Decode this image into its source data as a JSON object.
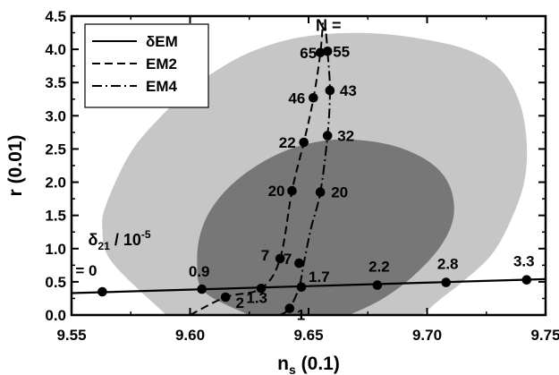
{
  "chart_data": {
    "type": "line",
    "title": "",
    "xlabel": "n",
    "xlabel_sub": "s",
    "xlabel_unit": "(0.1)",
    "ylabel": "r (0.01)",
    "xlim": [
      9.55,
      9.75
    ],
    "ylim": [
      0.0,
      4.5
    ],
    "xticks": [
      "9.55",
      "9.60",
      "9.65",
      "9.70",
      "9.75"
    ],
    "xtick_values": [
      9.55,
      9.6,
      9.65,
      9.7,
      9.75
    ],
    "yticks": [
      "0.0",
      "0.5",
      "1.0",
      "1.5",
      "2.0",
      "2.5",
      "3.0",
      "3.5",
      "4.0",
      "4.5"
    ],
    "ytick_values": [
      0.0,
      0.5,
      1.0,
      1.5,
      2.0,
      2.5,
      3.0,
      3.5,
      4.0,
      4.5
    ],
    "grid": false,
    "legend_position": "top-left",
    "contours": [
      {
        "level": "outer",
        "color": "#c6c6c6",
        "points": [
          [
            9.59,
            0.0
          ],
          [
            9.567,
            0.8
          ],
          [
            9.563,
            1.3
          ],
          [
            9.565,
            1.7
          ],
          [
            9.575,
            2.45
          ],
          [
            9.588,
            3.0
          ],
          [
            9.6,
            3.4
          ],
          [
            9.612,
            3.7
          ],
          [
            9.625,
            3.95
          ],
          [
            9.642,
            4.15
          ],
          [
            9.662,
            4.24
          ],
          [
            9.682,
            4.23
          ],
          [
            9.702,
            4.13
          ],
          [
            9.718,
            3.98
          ],
          [
            9.731,
            3.7
          ],
          [
            9.739,
            3.2
          ],
          [
            9.742,
            2.6
          ],
          [
            9.741,
            2.0
          ],
          [
            9.735,
            1.4
          ],
          [
            9.727,
            0.9
          ],
          [
            9.715,
            0.5
          ],
          [
            9.706,
            0.25
          ],
          [
            9.698,
            0.0
          ]
        ]
      },
      {
        "level": "inner",
        "color": "#777777",
        "points": [
          [
            9.625,
            0.0
          ],
          [
            9.606,
            0.35
          ],
          [
            9.603,
            0.8
          ],
          [
            9.605,
            1.3
          ],
          [
            9.612,
            1.75
          ],
          [
            9.624,
            2.15
          ],
          [
            9.64,
            2.47
          ],
          [
            9.658,
            2.63
          ],
          [
            9.675,
            2.62
          ],
          [
            9.69,
            2.5
          ],
          [
            9.703,
            2.25
          ],
          [
            9.71,
            1.9
          ],
          [
            9.711,
            1.45
          ],
          [
            9.705,
            1.0
          ],
          [
            9.693,
            0.55
          ],
          [
            9.68,
            0.22
          ],
          [
            9.667,
            0.0
          ]
        ]
      }
    ],
    "series": [
      {
        "name": "δEM",
        "style": "solid",
        "points": [
          [
            9.55,
            0.33
          ],
          [
            9.75,
            0.54
          ]
        ]
      },
      {
        "name": "EM2",
        "style": "dash",
        "points": [
          [
            9.6,
            0.0
          ],
          [
            9.615,
            0.27
          ],
          [
            9.63,
            0.4
          ],
          [
            9.638,
            0.85
          ],
          [
            9.643,
            1.87
          ],
          [
            9.648,
            2.6
          ],
          [
            9.652,
            3.25
          ],
          [
            9.655,
            3.95
          ],
          [
            9.656,
            4.4
          ]
        ]
      },
      {
        "name": "EM4",
        "style": "dashdot",
        "points": [
          [
            9.638,
            0.0
          ],
          [
            9.642,
            0.1
          ],
          [
            9.646,
            0.42
          ],
          [
            9.648,
            0.78
          ],
          [
            9.651,
            1.3
          ],
          [
            9.655,
            1.85
          ],
          [
            9.658,
            2.7
          ],
          [
            9.659,
            3.38
          ],
          [
            9.658,
            3.97
          ],
          [
            9.657,
            4.4
          ]
        ]
      }
    ],
    "points": [
      {
        "x": 9.563,
        "y": 0.35,
        "label": "= 0"
      },
      {
        "x": 9.605,
        "y": 0.39,
        "label": "0.9"
      },
      {
        "x": 9.615,
        "y": 0.27,
        "label": "2"
      },
      {
        "x": 9.63,
        "y": 0.4,
        "label": "1.3"
      },
      {
        "x": 9.647,
        "y": 0.42,
        "label": "1.7"
      },
      {
        "x": 9.679,
        "y": 0.45,
        "label": "2.2"
      },
      {
        "x": 9.708,
        "y": 0.49,
        "label": "2.8"
      },
      {
        "x": 9.742,
        "y": 0.53,
        "label": "3.3"
      },
      {
        "x": 9.642,
        "y": 0.1,
        "label": "1"
      },
      {
        "x": 9.638,
        "y": 0.85,
        "label": "7"
      },
      {
        "x": 9.646,
        "y": 0.78,
        "label": "7"
      },
      {
        "x": 9.643,
        "y": 1.87,
        "label": "20"
      },
      {
        "x": 9.655,
        "y": 1.85,
        "label": "20"
      },
      {
        "x": 9.648,
        "y": 2.6,
        "label": "22"
      },
      {
        "x": 9.658,
        "y": 2.7,
        "label": "32"
      },
      {
        "x": 9.652,
        "y": 3.27,
        "label": "46"
      },
      {
        "x": 9.659,
        "y": 3.38,
        "label": "43"
      },
      {
        "x": 9.655,
        "y": 3.95,
        "label": "65"
      },
      {
        "x": 9.658,
        "y": 3.97,
        "label": "55"
      }
    ],
    "annotations": [
      {
        "text": "δ",
        "sub": "21",
        "suffix": " / 10",
        "sup": "-5",
        "x": 9.557,
        "y": 1.05
      },
      {
        "text": "N =",
        "x": 9.653,
        "y": 4.28
      }
    ]
  }
}
